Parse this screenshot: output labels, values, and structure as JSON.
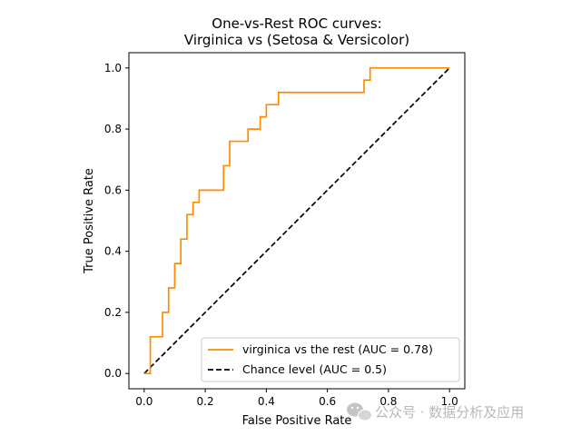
{
  "chart_data": {
    "type": "line",
    "title": [
      "One-vs-Rest ROC curves:",
      "Virginica vs (Setosa & Versicolor)"
    ],
    "xlabel": "False Positive Rate",
    "ylabel": "True Positive Rate",
    "xlim": [
      -0.05,
      1.05
    ],
    "ylim": [
      -0.05,
      1.05
    ],
    "xticks": [
      "0.0",
      "0.2",
      "0.4",
      "0.6",
      "0.8",
      "1.0"
    ],
    "yticks": [
      "0.0",
      "0.2",
      "0.4",
      "0.6",
      "0.8",
      "1.0"
    ],
    "grid": false,
    "legend_position": "lower-right",
    "series": [
      {
        "name": "virginica vs the rest (AUC = 0.78)",
        "color": "#ff8c00",
        "style": "solid",
        "x": [
          0.0,
          0.02,
          0.02,
          0.06,
          0.06,
          0.08,
          0.08,
          0.1,
          0.1,
          0.12,
          0.12,
          0.14,
          0.14,
          0.16,
          0.16,
          0.18,
          0.18,
          0.26,
          0.26,
          0.28,
          0.28,
          0.34,
          0.34,
          0.38,
          0.38,
          0.4,
          0.4,
          0.44,
          0.44,
          0.72,
          0.72,
          0.74,
          0.74,
          1.0
        ],
        "y": [
          0.0,
          0.0,
          0.12,
          0.12,
          0.2,
          0.2,
          0.28,
          0.28,
          0.36,
          0.36,
          0.44,
          0.44,
          0.52,
          0.52,
          0.56,
          0.56,
          0.6,
          0.6,
          0.68,
          0.68,
          0.76,
          0.76,
          0.8,
          0.8,
          0.84,
          0.84,
          0.88,
          0.88,
          0.92,
          0.92,
          0.96,
          0.96,
          1.0,
          1.0
        ]
      },
      {
        "name": "Chance level (AUC = 0.5)",
        "color": "#000000",
        "style": "dashed",
        "x": [
          0.0,
          1.0
        ],
        "y": [
          0.0,
          1.0
        ]
      }
    ]
  },
  "watermark": {
    "text": "公众号 · 数据分析及应用",
    "icon": "wechat-icon",
    "color": "#b8b8b8"
  }
}
